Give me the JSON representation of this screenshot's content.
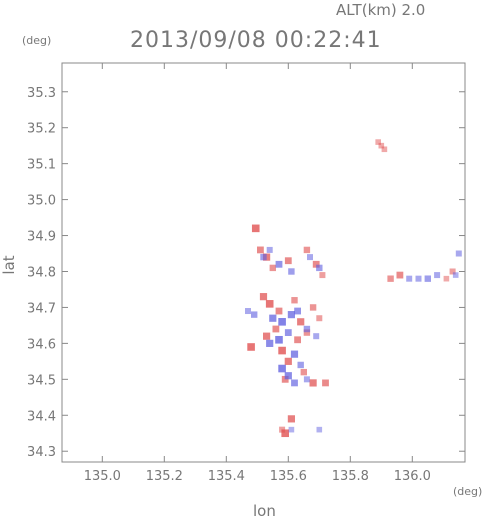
{
  "chart_data": {
    "type": "scatter",
    "title": "2013/09/08 00:22:41",
    "subtitle": "ALT(km) 2.0",
    "xlabel": "lon",
    "ylabel": "lat",
    "x_unit": "(deg)",
    "y_unit": "(deg)",
    "xlim": [
      134.87,
      136.17
    ],
    "ylim": [
      34.27,
      35.38
    ],
    "xticks": [
      135.0,
      135.2,
      135.4,
      135.6,
      135.8,
      136.0
    ],
    "xtick_labels": [
      "135.0",
      "135.2",
      "135.4",
      "135.6",
      "135.8",
      "136.0"
    ],
    "yticks": [
      34.3,
      34.4,
      34.5,
      34.6,
      34.7,
      34.8,
      34.9,
      35.0,
      35.1,
      35.2,
      35.3
    ],
    "ytick_labels": [
      "34.3",
      "34.4",
      "34.5",
      "34.6",
      "34.7",
      "34.8",
      "34.9",
      "35.0",
      "35.1",
      "35.2",
      "35.3"
    ],
    "grid": false,
    "colors": {
      "positive": "#e05050",
      "negative": "#6060e0",
      "axis": "#888888"
    },
    "series": [
      {
        "polarity": "positive",
        "points": [
          [
            135.495,
            34.92
          ],
          [
            135.51,
            34.86
          ],
          [
            135.53,
            34.84
          ],
          [
            135.55,
            34.81
          ],
          [
            135.6,
            34.83
          ],
          [
            135.66,
            34.86
          ],
          [
            135.69,
            34.82
          ],
          [
            135.71,
            34.79
          ],
          [
            135.52,
            34.73
          ],
          [
            135.54,
            34.71
          ],
          [
            135.57,
            34.69
          ],
          [
            135.62,
            34.72
          ],
          [
            135.64,
            34.66
          ],
          [
            135.68,
            34.7
          ],
          [
            135.7,
            34.67
          ],
          [
            135.48,
            34.59
          ],
          [
            135.53,
            34.62
          ],
          [
            135.56,
            34.64
          ],
          [
            135.58,
            34.58
          ],
          [
            135.6,
            34.55
          ],
          [
            135.63,
            34.61
          ],
          [
            135.66,
            34.63
          ],
          [
            135.59,
            34.5
          ],
          [
            135.65,
            34.52
          ],
          [
            135.68,
            34.49
          ],
          [
            135.72,
            34.49
          ],
          [
            135.61,
            34.39
          ],
          [
            135.58,
            34.36
          ],
          [
            135.59,
            34.35
          ],
          [
            135.9,
            35.15
          ],
          [
            135.89,
            35.16
          ],
          [
            135.91,
            35.14
          ],
          [
            135.93,
            34.78
          ],
          [
            135.96,
            34.79
          ],
          [
            136.13,
            34.8
          ],
          [
            136.11,
            34.78
          ]
        ],
        "magnitudes": [
          0.9,
          0.7,
          0.8,
          0.6,
          0.7,
          0.6,
          0.7,
          0.5,
          0.8,
          0.9,
          0.7,
          0.6,
          0.8,
          0.6,
          0.5,
          0.9,
          0.8,
          0.7,
          0.9,
          0.8,
          0.7,
          0.6,
          0.7,
          0.6,
          0.8,
          0.7,
          0.8,
          0.5,
          0.9,
          0.4,
          0.4,
          0.4,
          0.6,
          0.7,
          0.5,
          0.4
        ]
      },
      {
        "polarity": "negative",
        "points": [
          [
            135.52,
            34.84
          ],
          [
            135.54,
            34.86
          ],
          [
            135.57,
            34.82
          ],
          [
            135.61,
            34.8
          ],
          [
            135.67,
            34.84
          ],
          [
            135.7,
            34.81
          ],
          [
            135.49,
            34.68
          ],
          [
            135.55,
            34.67
          ],
          [
            135.58,
            34.66
          ],
          [
            135.61,
            34.68
          ],
          [
            135.63,
            34.69
          ],
          [
            135.66,
            34.64
          ],
          [
            135.69,
            34.62
          ],
          [
            135.54,
            34.6
          ],
          [
            135.57,
            34.61
          ],
          [
            135.6,
            34.63
          ],
          [
            135.62,
            34.57
          ],
          [
            135.64,
            34.54
          ],
          [
            135.58,
            34.53
          ],
          [
            135.6,
            34.51
          ],
          [
            135.62,
            34.49
          ],
          [
            135.66,
            34.5
          ],
          [
            135.61,
            34.36
          ],
          [
            135.7,
            34.36
          ],
          [
            135.99,
            34.78
          ],
          [
            136.02,
            34.78
          ],
          [
            136.05,
            34.78
          ],
          [
            136.08,
            34.79
          ],
          [
            136.15,
            34.85
          ],
          [
            136.14,
            34.79
          ],
          [
            135.47,
            34.69
          ]
        ],
        "magnitudes": [
          0.6,
          0.5,
          0.7,
          0.6,
          0.5,
          0.6,
          0.6,
          0.8,
          0.9,
          0.8,
          0.7,
          0.6,
          0.5,
          0.8,
          0.9,
          0.7,
          0.8,
          0.6,
          0.9,
          0.8,
          0.7,
          0.5,
          0.4,
          0.4,
          0.5,
          0.5,
          0.6,
          0.5,
          0.5,
          0.4,
          0.5
        ]
      }
    ]
  }
}
